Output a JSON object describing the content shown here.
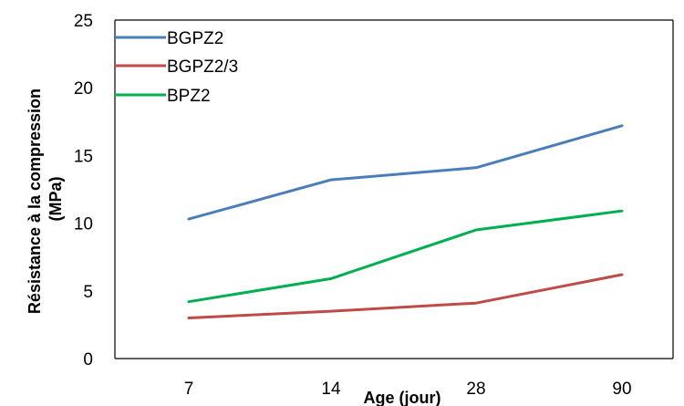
{
  "chart_data": {
    "type": "line",
    "title": "",
    "xlabel": "Age (jour)",
    "ylabel_lines": [
      "Résistance à la compression",
      "(MPa)"
    ],
    "categories": [
      "7",
      "14",
      "28",
      "90"
    ],
    "ylim": [
      0,
      25
    ],
    "yticks": [
      "0",
      "5",
      "10",
      "15",
      "20",
      "25"
    ],
    "grid": false,
    "legend_position": "top-left",
    "series": [
      {
        "name": "BGPZ2",
        "color": "#4A7EBB",
        "values": [
          10.3,
          13.2,
          14.1,
          17.2
        ]
      },
      {
        "name": "BGPZ2/3",
        "color": "#BE4B48",
        "values": [
          3.0,
          3.5,
          4.1,
          6.2
        ]
      },
      {
        "name": "BPZ2",
        "color": "#00B050",
        "values": [
          4.2,
          5.9,
          9.5,
          10.9
        ]
      }
    ]
  }
}
